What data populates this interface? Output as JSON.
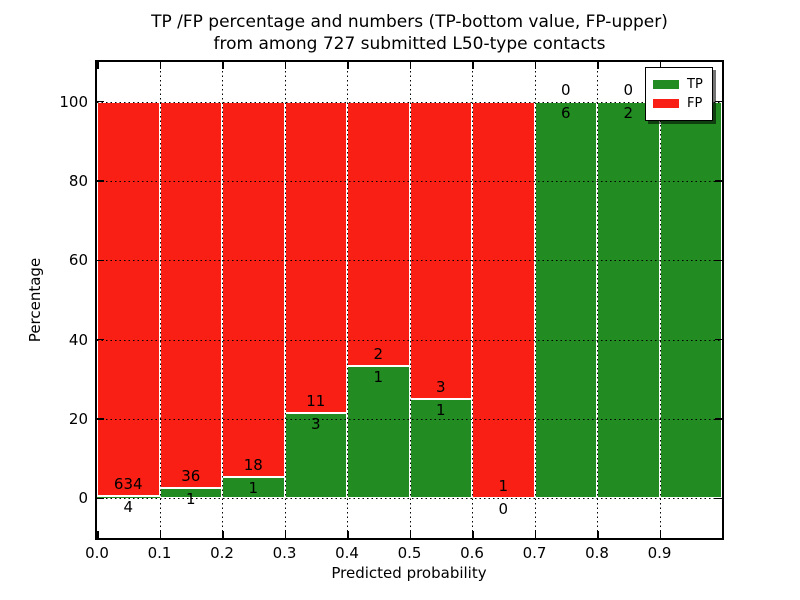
{
  "header": {
    "title_line1": "TP /FP percentage and numbers (TP-bottom value, FP-upper)",
    "title_line2": "from among 727 submitted L50-type contacts"
  },
  "axes": {
    "xlabel": "Predicted probability",
    "ylabel": "Percentage",
    "xtick_labels": [
      "0.0",
      "0.1",
      "0.2",
      "0.3",
      "0.4",
      "0.5",
      "0.6",
      "0.7",
      "0.8",
      "0.9"
    ],
    "ytick_labels": [
      "0",
      "20",
      "40",
      "60",
      "80",
      "100"
    ]
  },
  "legend": {
    "items": [
      {
        "label": "TP",
        "color": "#228B22"
      },
      {
        "label": "FP",
        "color": "#FA1F14"
      }
    ],
    "position": "upper right",
    "shadow": true
  },
  "colors": {
    "tp": "#228B22",
    "fp": "#FA1F14",
    "background": "#ffffff",
    "text": "#000000"
  },
  "chart_data": {
    "type": "bar",
    "subtype": "stacked-percentage",
    "title": "TP /FP percentage and numbers (TP-bottom value, FP-upper)\nfrom among 727 submitted L50-type contacts",
    "xlabel": "Predicted probability",
    "ylabel": "Percentage",
    "total_contacts": 727,
    "bin_width": 0.1,
    "bin_starts": [
      0.0,
      0.1,
      0.2,
      0.3,
      0.4,
      0.5,
      0.6,
      0.7,
      0.8,
      0.9
    ],
    "categories": [
      "0.0-0.1",
      "0.1-0.2",
      "0.2-0.3",
      "0.3-0.4",
      "0.4-0.5",
      "0.5-0.6",
      "0.6-0.7",
      "0.7-0.8",
      "0.8-0.9",
      "0.9-1.0"
    ],
    "series": [
      {
        "name": "TP",
        "color": "#228B22",
        "counts": [
          4,
          1,
          1,
          3,
          1,
          1,
          0,
          6,
          2,
          3
        ]
      },
      {
        "name": "FP",
        "color": "#FA1F14",
        "counts": [
          634,
          36,
          18,
          11,
          2,
          3,
          1,
          0,
          0,
          0
        ]
      }
    ],
    "tp_percentages": [
      0.63,
      2.7,
      5.26,
      21.43,
      33.33,
      25.0,
      0.0,
      100.0,
      100.0,
      100.0
    ],
    "ylim": [
      -10,
      110
    ],
    "xlim": [
      0,
      1
    ],
    "yticks": [
      0,
      20,
      40,
      60,
      80,
      100
    ],
    "grid": "dotted",
    "legend_position": "upper right"
  }
}
